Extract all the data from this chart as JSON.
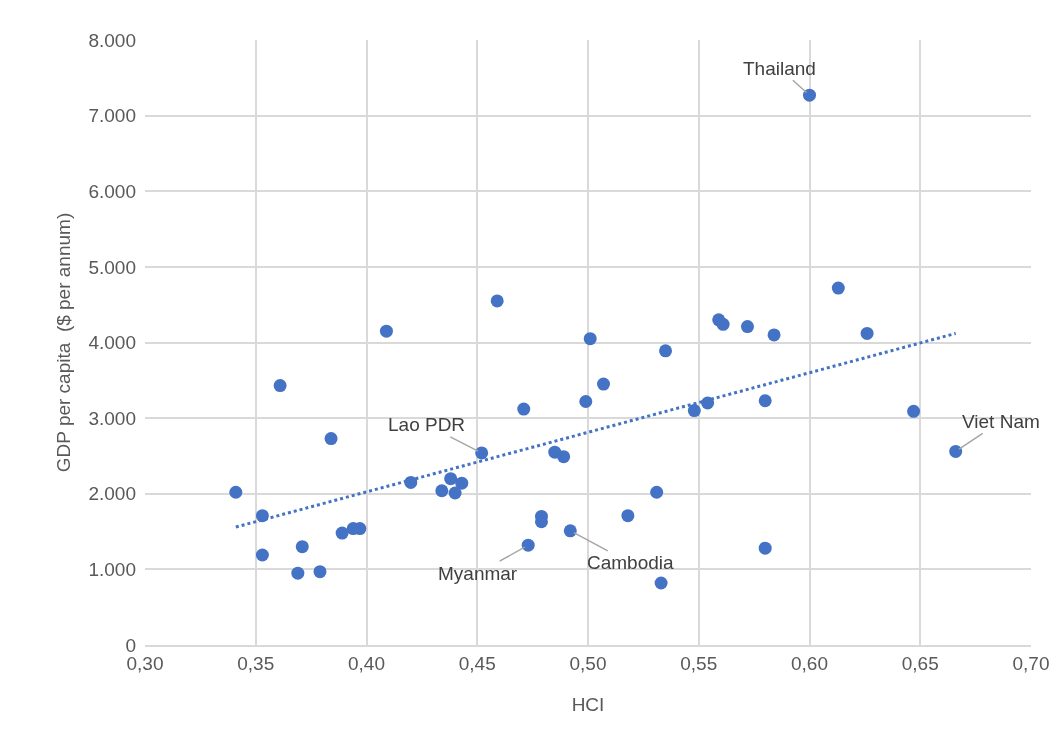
{
  "chart_data": {
    "type": "scatter",
    "xlabel": "HCI",
    "ylabel": "GDP per capita  ($ per annum)",
    "xlim": [
      0.3,
      0.7
    ],
    "xticks": [
      {
        "value": 0.3,
        "label": "0,30"
      },
      {
        "value": 0.35,
        "label": "0,35"
      },
      {
        "value": 0.4,
        "label": "0,40"
      },
      {
        "value": 0.45,
        "label": "0,45"
      },
      {
        "value": 0.5,
        "label": "0,50"
      },
      {
        "value": 0.55,
        "label": "0,55"
      },
      {
        "value": 0.6,
        "label": "0,60"
      },
      {
        "value": 0.65,
        "label": "0,65"
      },
      {
        "value": 0.7,
        "label": "0,70"
      }
    ],
    "ylim": [
      0,
      8000
    ],
    "yticks": [
      0,
      {
        "value": 1000,
        "label": "1.000"
      },
      {
        "value": 2000,
        "label": "2.000"
      },
      {
        "value": 3000,
        "label": "3.000"
      },
      {
        "value": 4000,
        "label": "4.000"
      },
      {
        "value": 5000,
        "label": "5.000"
      },
      {
        "value": 6000,
        "label": "6.000"
      },
      {
        "value": 7000,
        "label": "7.000"
      },
      {
        "value": 8000,
        "label": "8.000"
      }
    ],
    "grid": true,
    "series": [
      {
        "color": "#4472c4",
        "marker": "circle",
        "x": [
          0.341,
          0.353,
          0.353,
          0.361,
          0.371,
          0.369,
          0.379,
          0.384,
          0.389,
          0.394,
          0.397,
          0.409,
          0.42,
          0.434,
          0.438,
          0.443,
          0.44,
          0.452,
          0.459,
          0.471,
          0.479,
          0.479,
          0.473,
          0.485,
          0.489,
          0.492,
          0.501,
          0.499,
          0.507,
          0.518,
          0.531,
          0.533,
          0.535,
          0.548,
          0.554,
          0.559,
          0.561,
          0.572,
          0.584,
          0.58,
          0.58,
          0.6,
          0.613,
          0.626,
          0.647,
          0.666
        ],
        "values": [
          2020,
          1710,
          1190,
          3430,
          1300,
          950,
          970,
          2730,
          1480,
          1540,
          1540,
          4150,
          2150,
          2040,
          2200,
          2140,
          2010,
          2540,
          4550,
          3120,
          1700,
          1630,
          1320,
          2550,
          2490,
          1510,
          4050,
          3220,
          3450,
          1710,
          2020,
          820,
          3890,
          3100,
          3200,
          4300,
          4240,
          4210,
          4100,
          3230,
          1280,
          7270,
          4720,
          4120,
          3090,
          2560
        ]
      },
      {
        "type": "line",
        "color": "#4472c4",
        "line_style": "dotted",
        "marker": "none",
        "x": [
          0.341,
          0.666
        ],
        "values": [
          1560,
          4120
        ]
      }
    ],
    "annotations": [
      {
        "text": "Thailand",
        "x": 0.6,
        "y": 7270
      },
      {
        "text": "Lao PDR",
        "x": 0.452,
        "y": 2540
      },
      {
        "text": "Myanmar",
        "x": 0.473,
        "y": 1320
      },
      {
        "text": "Cambodia",
        "x": 0.492,
        "y": 1510
      },
      {
        "text": "Viet Nam",
        "x": 0.666,
        "y": 2560
      }
    ]
  }
}
